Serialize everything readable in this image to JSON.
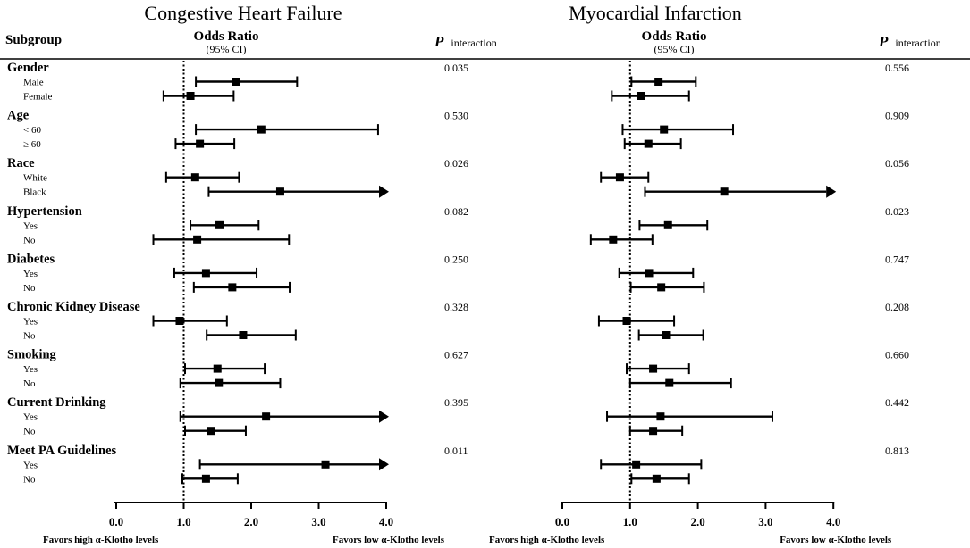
{
  "chart_data": [
    {
      "type": "forest",
      "title": "Congestive Heart Failure",
      "measure_label": "Odds Ratio",
      "measure_sublabel": "(95% CI)",
      "xticks": [
        "0.0",
        "1.0",
        "2.0",
        "3.0",
        "4.0"
      ],
      "xlim": [
        0,
        4
      ],
      "reference": 1.0,
      "favors_left": "Favors high α-Klotho levels",
      "favors_right": "Favors low α-Klotho levels",
      "groups": [
        {
          "name": "Gender",
          "p": "0.035",
          "levels": [
            {
              "label": "Male",
              "or": 1.78,
              "lo": 1.18,
              "hi": 2.68
            },
            {
              "label": "Female",
              "or": 1.1,
              "lo": 0.7,
              "hi": 1.74
            }
          ]
        },
        {
          "name": "Age",
          "p": "0.530",
          "levels": [
            {
              "label": "< 60",
              "or": 2.15,
              "lo": 1.18,
              "hi": 3.88
            },
            {
              "label": "≥ 60",
              "or": 1.24,
              "lo": 0.88,
              "hi": 1.75
            }
          ]
        },
        {
          "name": "Race",
          "p": "0.026",
          "levels": [
            {
              "label": "White",
              "or": 1.17,
              "lo": 0.74,
              "hi": 1.82
            },
            {
              "label": "Black",
              "or": 2.43,
              "lo": 1.37,
              "hi": 4.0,
              "arrow": true
            }
          ]
        },
        {
          "name": "Hypertension",
          "p": "0.082",
          "levels": [
            {
              "label": "Yes",
              "or": 1.53,
              "lo": 1.1,
              "hi": 2.11
            },
            {
              "label": "No",
              "or": 1.2,
              "lo": 0.55,
              "hi": 2.56
            }
          ]
        },
        {
          "name": "Diabetes",
          "p": "0.250",
          "levels": [
            {
              "label": "Yes",
              "or": 1.33,
              "lo": 0.86,
              "hi": 2.08
            },
            {
              "label": "No",
              "or": 1.72,
              "lo": 1.15,
              "hi": 2.57
            }
          ]
        },
        {
          "name": "Chronic Kidney Disease",
          "p": "0.328",
          "levels": [
            {
              "label": "Yes",
              "or": 0.94,
              "lo": 0.55,
              "hi": 1.64
            },
            {
              "label": "No",
              "or": 1.88,
              "lo": 1.34,
              "hi": 2.66
            }
          ]
        },
        {
          "name": "Smoking",
          "p": "0.627",
          "levels": [
            {
              "label": "Yes",
              "or": 1.5,
              "lo": 1.02,
              "hi": 2.2
            },
            {
              "label": "No",
              "or": 1.52,
              "lo": 0.95,
              "hi": 2.43
            }
          ]
        },
        {
          "name": "Current Drinking",
          "p": "0.395",
          "levels": [
            {
              "label": "Yes",
              "or": 2.22,
              "lo": 0.95,
              "hi": 4.0,
              "arrow": true
            },
            {
              "label": "No",
              "or": 1.4,
              "lo": 1.02,
              "hi": 1.92
            }
          ]
        },
        {
          "name": "Meet PA Guidelines",
          "p": "0.011",
          "levels": [
            {
              "label": "Yes",
              "or": 3.1,
              "lo": 1.24,
              "hi": 4.0,
              "arrow": true
            },
            {
              "label": "No",
              "or": 1.33,
              "lo": 0.98,
              "hi": 1.8
            }
          ]
        }
      ]
    },
    {
      "type": "forest",
      "title": "Myocardial Infarction",
      "measure_label": "Odds Ratio",
      "measure_sublabel": "(95% CI)",
      "xticks": [
        "0.0",
        "1.0",
        "2.0",
        "3.0",
        "4.0"
      ],
      "xlim": [
        0,
        4
      ],
      "reference": 1.0,
      "favors_left": "Favors high α-Klotho levels",
      "favors_right": "Favors low α-Klotho levels",
      "groups": [
        {
          "name": "Gender",
          "p": "0.556",
          "levels": [
            {
              "or": 1.42,
              "lo": 1.02,
              "hi": 1.97
            },
            {
              "or": 1.16,
              "lo": 0.73,
              "hi": 1.87
            }
          ]
        },
        {
          "name": "Age",
          "p": "0.909",
          "levels": [
            {
              "or": 1.5,
              "lo": 0.89,
              "hi": 2.52
            },
            {
              "or": 1.27,
              "lo": 0.92,
              "hi": 1.75
            }
          ]
        },
        {
          "name": "Race",
          "p": "0.056",
          "levels": [
            {
              "or": 0.85,
              "lo": 0.57,
              "hi": 1.27
            },
            {
              "or": 2.39,
              "lo": 1.22,
              "hi": 4.0,
              "arrow": true
            }
          ]
        },
        {
          "name": "Hypertension",
          "p": "0.023",
          "levels": [
            {
              "or": 1.56,
              "lo": 1.14,
              "hi": 2.14
            },
            {
              "or": 0.75,
              "lo": 0.42,
              "hi": 1.33
            }
          ]
        },
        {
          "name": "Diabetes",
          "p": "0.747",
          "levels": [
            {
              "or": 1.28,
              "lo": 0.84,
              "hi": 1.93
            },
            {
              "or": 1.46,
              "lo": 1.01,
              "hi": 2.09
            }
          ]
        },
        {
          "name": "Chronic Kidney Disease",
          "p": "0.208",
          "levels": [
            {
              "or": 0.95,
              "lo": 0.54,
              "hi": 1.65
            },
            {
              "or": 1.53,
              "lo": 1.13,
              "hi": 2.08
            }
          ]
        },
        {
          "name": "Smoking",
          "p": "0.660",
          "levels": [
            {
              "or": 1.34,
              "lo": 0.95,
              "hi": 1.87
            },
            {
              "or": 1.58,
              "lo": 1.0,
              "hi": 2.49
            }
          ]
        },
        {
          "name": "Current Drinking",
          "p": "0.442",
          "levels": [
            {
              "or": 1.45,
              "lo": 0.66,
              "hi": 3.1
            },
            {
              "or": 1.34,
              "lo": 1.0,
              "hi": 1.77
            }
          ]
        },
        {
          "name": "Meet PA Guidelines",
          "p": "0.813",
          "levels": [
            {
              "or": 1.09,
              "lo": 0.57,
              "hi": 2.05
            },
            {
              "or": 1.39,
              "lo": 1.02,
              "hi": 1.87
            }
          ]
        }
      ]
    }
  ],
  "header": {
    "subgroup_label": "Subgroup",
    "p_letter": "P",
    "p_suffix": "interaction"
  },
  "colors": {
    "ink": "#000000",
    "background": "#ffffff"
  }
}
